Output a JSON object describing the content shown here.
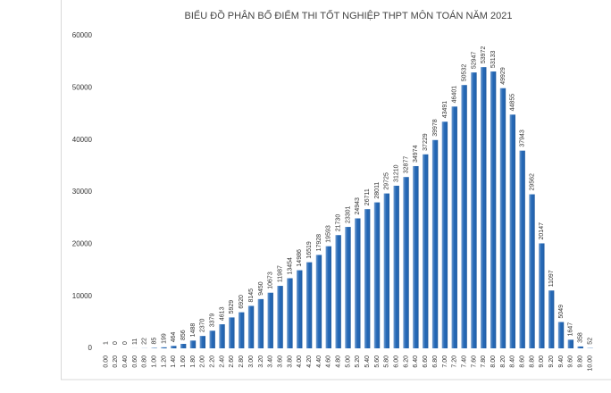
{
  "chart_data": {
    "type": "bar",
    "title": "BIỂU ĐỒ PHÂN BỐ ĐIỂM THI TỐT NGHIỆP THPT MÔN TOÁN NĂM 2021",
    "categories": [
      "0.00",
      "0.20",
      "0.40",
      "0.60",
      "0.80",
      "1.00",
      "1.20",
      "1.40",
      "1.60",
      "1.80",
      "2.00",
      "2.20",
      "2.40",
      "2.60",
      "2.80",
      "3.00",
      "3.20",
      "3.40",
      "3.60",
      "3.80",
      "4.00",
      "4.20",
      "4.40",
      "4.60",
      "4.80",
      "5.00",
      "5.20",
      "5.40",
      "5.60",
      "5.80",
      "6.00",
      "6.20",
      "6.40",
      "6.60",
      "6.80",
      "7.00",
      "7.20",
      "7.40",
      "7.60",
      "7.80",
      "8.00",
      "8.20",
      "8.40",
      "8.60",
      "8.80",
      "9.00",
      "9.20",
      "9.40",
      "9.60",
      "9.80",
      "10.00"
    ],
    "values": [
      1,
      0,
      0,
      11,
      22,
      85,
      199,
      464,
      856,
      1488,
      2370,
      3379,
      4613,
      5929,
      6920,
      8145,
      9450,
      10673,
      11987,
      13454,
      14986,
      16519,
      17928,
      19593,
      21730,
      23301,
      24943,
      26711,
      28011,
      29725,
      31210,
      32877,
      34974,
      37229,
      39978,
      43491,
      46401,
      50532,
      52947,
      53972,
      53133,
      49929,
      44855,
      37943,
      29562,
      20147,
      11097,
      5049,
      1647,
      358,
      52
    ],
    "color": "#1f64b4",
    "ylim": [
      0,
      60000
    ],
    "yticks": [
      0,
      10000,
      20000,
      30000,
      40000,
      50000,
      60000
    ]
  }
}
